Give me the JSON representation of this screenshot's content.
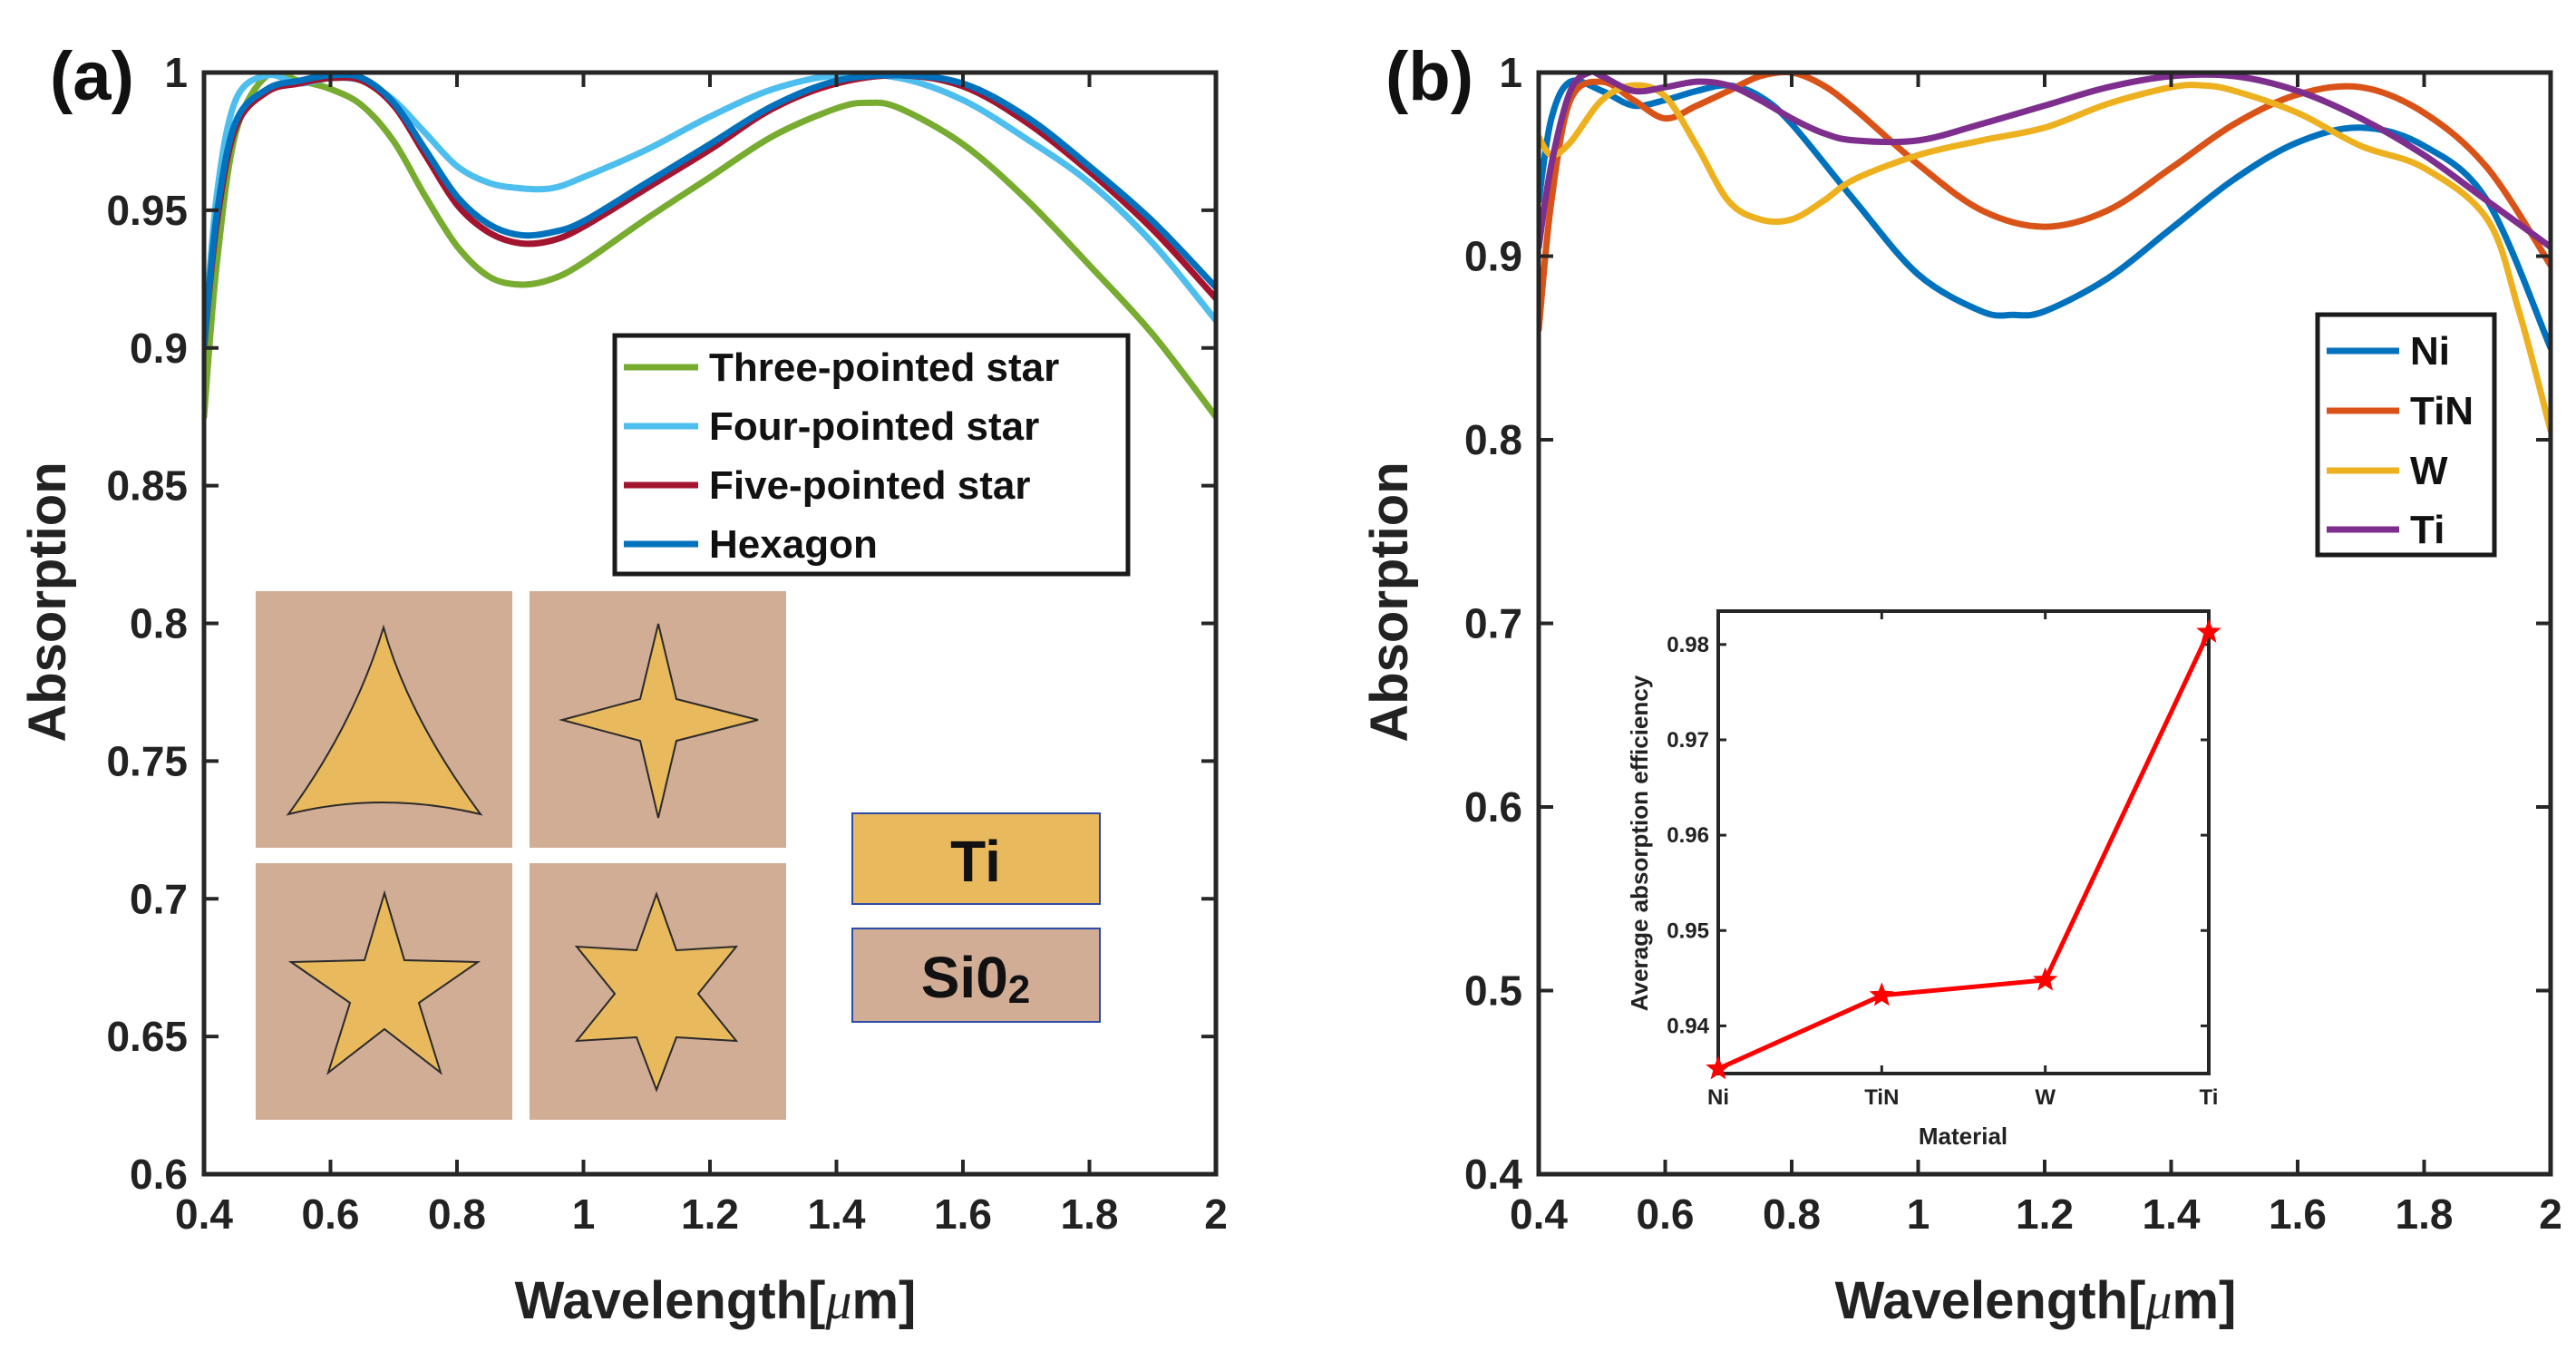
{
  "panel_a": {
    "label": "(a)",
    "ylabel": "Absorption",
    "xlabel": "Wavelength[",
    "xlabel_mu": "μ",
    "xlabel_unit": "m]",
    "inset_labels": {
      "ti": "Ti",
      "sio2_base": "Si0",
      "sio2_sub": "2"
    },
    "colors": {
      "substrate": "#d1ad96",
      "metal": "#e8b95d"
    }
  },
  "panel_b": {
    "label": "(b)",
    "ylabel": "Absorption",
    "xlabel": "Wavelength[",
    "xlabel_mu": "μ",
    "xlabel_unit": "m]"
  },
  "chart_data": [
    {
      "id": "a",
      "type": "line",
      "xlim": [
        0.4,
        2.0
      ],
      "ylim": [
        0.6,
        1.0
      ],
      "xticks": [
        0.4,
        0.6,
        0.8,
        1.0,
        1.2,
        1.4,
        1.6,
        1.8,
        2.0
      ],
      "xtick_labels": [
        "0.4",
        "0.6",
        "0.8",
        "1",
        "1.2",
        "1.4",
        "1.6",
        "1.8",
        "2"
      ],
      "yticks": [
        0.6,
        0.65,
        0.7,
        0.75,
        0.8,
        0.85,
        0.9,
        0.95,
        1.0
      ],
      "ytick_labels": [
        "0.6",
        "0.65",
        "0.7",
        "0.75",
        "0.8",
        "0.85",
        "0.9",
        "0.95",
        "1"
      ],
      "legend_position": "middle-right",
      "series": [
        {
          "name": "Three-pointed star",
          "color": "#77ac30",
          "x": [
            0.4,
            0.42,
            0.45,
            0.5,
            0.55,
            0.6,
            0.65,
            0.7,
            0.75,
            0.8,
            0.85,
            0.9,
            0.95,
            1.0,
            1.1,
            1.2,
            1.3,
            1.4,
            1.45,
            1.5,
            1.6,
            1.7,
            1.8,
            1.9,
            2.0
          ],
          "y": [
            0.875,
            0.93,
            0.978,
            0.999,
            0.997,
            0.994,
            0.988,
            0.975,
            0.955,
            0.937,
            0.926,
            0.923,
            0.925,
            0.931,
            0.947,
            0.962,
            0.977,
            0.987,
            0.989,
            0.987,
            0.974,
            0.954,
            0.93,
            0.905,
            0.875
          ]
        },
        {
          "name": "Four-pointed star",
          "color": "#4dbeee",
          "x": [
            0.4,
            0.42,
            0.45,
            0.5,
            0.55,
            0.6,
            0.65,
            0.7,
            0.75,
            0.8,
            0.85,
            0.9,
            0.95,
            1.0,
            1.1,
            1.2,
            1.3,
            1.4,
            1.5,
            1.6,
            1.7,
            1.8,
            1.9,
            2.0
          ],
          "y": [
            0.9,
            0.955,
            0.99,
            0.999,
            0.996,
            0.998,
            0.997,
            0.99,
            0.978,
            0.966,
            0.96,
            0.958,
            0.958,
            0.962,
            0.972,
            0.984,
            0.994,
            0.999,
            0.998,
            0.99,
            0.976,
            0.96,
            0.938,
            0.91
          ]
        },
        {
          "name": "Five-pointed star",
          "color": "#a2142f",
          "x": [
            0.4,
            0.42,
            0.45,
            0.5,
            0.55,
            0.6,
            0.65,
            0.7,
            0.75,
            0.8,
            0.85,
            0.9,
            0.95,
            1.0,
            1.1,
            1.2,
            1.3,
            1.4,
            1.5,
            1.6,
            1.7,
            1.8,
            1.9,
            2.0
          ],
          "y": [
            0.9,
            0.945,
            0.98,
            0.993,
            0.996,
            0.998,
            0.997,
            0.988,
            0.97,
            0.952,
            0.942,
            0.938,
            0.939,
            0.944,
            0.958,
            0.972,
            0.987,
            0.996,
            0.999,
            0.995,
            0.982,
            0.964,
            0.943,
            0.918
          ]
        },
        {
          "name": "Hexagon",
          "color": "#0072bd",
          "x": [
            0.4,
            0.42,
            0.45,
            0.5,
            0.55,
            0.6,
            0.65,
            0.7,
            0.75,
            0.8,
            0.85,
            0.9,
            0.95,
            1.0,
            1.1,
            1.2,
            1.3,
            1.4,
            1.5,
            1.6,
            1.7,
            1.8,
            1.9,
            2.0
          ],
          "y": [
            0.9,
            0.948,
            0.982,
            0.994,
            0.997,
            0.999,
            0.998,
            0.989,
            0.972,
            0.955,
            0.945,
            0.941,
            0.942,
            0.946,
            0.96,
            0.974,
            0.988,
            0.997,
            0.999,
            0.996,
            0.984,
            0.966,
            0.946,
            0.922
          ]
        }
      ]
    },
    {
      "id": "b",
      "type": "line",
      "xlim": [
        0.4,
        2.0
      ],
      "ylim": [
        0.4,
        1.0
      ],
      "xticks": [
        0.4,
        0.6,
        0.8,
        1.0,
        1.2,
        1.4,
        1.6,
        1.8,
        2.0
      ],
      "xtick_labels": [
        "0.4",
        "0.6",
        "0.8",
        "1",
        "1.2",
        "1.4",
        "1.6",
        "1.8",
        "2"
      ],
      "yticks": [
        0.4,
        0.5,
        0.6,
        0.7,
        0.8,
        0.9,
        1.0
      ],
      "ytick_labels": [
        "0.4",
        "0.5",
        "0.6",
        "0.7",
        "0.8",
        "0.9",
        "1"
      ],
      "legend_position": "upper-right",
      "series": [
        {
          "name": "Ni",
          "color": "#0072bd",
          "x": [
            0.4,
            0.42,
            0.45,
            0.5,
            0.55,
            0.6,
            0.65,
            0.7,
            0.75,
            0.8,
            0.9,
            1.0,
            1.1,
            1.15,
            1.2,
            1.3,
            1.4,
            1.5,
            1.6,
            1.7,
            1.8,
            1.9,
            2.0
          ],
          "y": [
            0.93,
            0.975,
            0.995,
            0.99,
            0.982,
            0.985,
            0.99,
            0.993,
            0.987,
            0.972,
            0.93,
            0.89,
            0.87,
            0.868,
            0.87,
            0.888,
            0.915,
            0.942,
            0.962,
            0.97,
            0.96,
            0.93,
            0.85
          ]
        },
        {
          "name": "TiN",
          "color": "#d95319",
          "x": [
            0.4,
            0.42,
            0.45,
            0.5,
            0.55,
            0.6,
            0.65,
            0.7,
            0.75,
            0.8,
            0.85,
            0.9,
            1.0,
            1.1,
            1.2,
            1.3,
            1.4,
            1.5,
            1.6,
            1.7,
            1.8,
            1.9,
            2.0
          ],
          "y": [
            0.86,
            0.93,
            0.985,
            0.995,
            0.985,
            0.975,
            0.982,
            0.99,
            0.998,
            1.0,
            0.993,
            0.98,
            0.95,
            0.925,
            0.916,
            0.925,
            0.948,
            0.972,
            0.988,
            0.992,
            0.978,
            0.948,
            0.895
          ]
        },
        {
          "name": "W",
          "color": "#edb120",
          "x": [
            0.4,
            0.42,
            0.45,
            0.5,
            0.55,
            0.6,
            0.65,
            0.7,
            0.75,
            0.8,
            0.85,
            0.9,
            1.0,
            1.1,
            1.2,
            1.3,
            1.4,
            1.45,
            1.5,
            1.6,
            1.7,
            1.8,
            1.9,
            1.95,
            2.0
          ],
          "y": [
            0.965,
            0.955,
            0.962,
            0.985,
            0.993,
            0.987,
            0.96,
            0.93,
            0.92,
            0.92,
            0.93,
            0.942,
            0.955,
            0.963,
            0.97,
            0.983,
            0.992,
            0.993,
            0.99,
            0.978,
            0.96,
            0.948,
            0.92,
            0.87,
            0.805
          ]
        },
        {
          "name": "Ti",
          "color": "#7e2f8e",
          "x": [
            0.4,
            0.42,
            0.45,
            0.48,
            0.5,
            0.55,
            0.6,
            0.65,
            0.7,
            0.75,
            0.8,
            0.85,
            0.9,
            1.0,
            1.1,
            1.2,
            1.3,
            1.4,
            1.5,
            1.6,
            1.7,
            1.8,
            1.9,
            2.0
          ],
          "y": [
            0.905,
            0.95,
            0.99,
            1.0,
            0.998,
            0.99,
            0.992,
            0.995,
            0.993,
            0.985,
            0.975,
            0.967,
            0.963,
            0.963,
            0.972,
            0.982,
            0.992,
            0.998,
            0.998,
            0.99,
            0.975,
            0.955,
            0.93,
            0.905
          ]
        }
      ]
    },
    {
      "id": "b-inset",
      "type": "line",
      "categories": [
        "Ni",
        "TiN",
        "W",
        "Ti"
      ],
      "values": [
        0.9355,
        0.9432,
        0.9448,
        0.9813
      ],
      "ylim": [
        0.935,
        0.9835
      ],
      "yticks": [
        0.94,
        0.95,
        0.96,
        0.97,
        0.98
      ],
      "ytick_labels": [
        "0.94",
        "0.95",
        "0.96",
        "0.97",
        "0.98"
      ],
      "xlabel": "Material",
      "ylabel": "Average absorption efficiency",
      "color": "#ff0000",
      "marker": "star"
    }
  ]
}
